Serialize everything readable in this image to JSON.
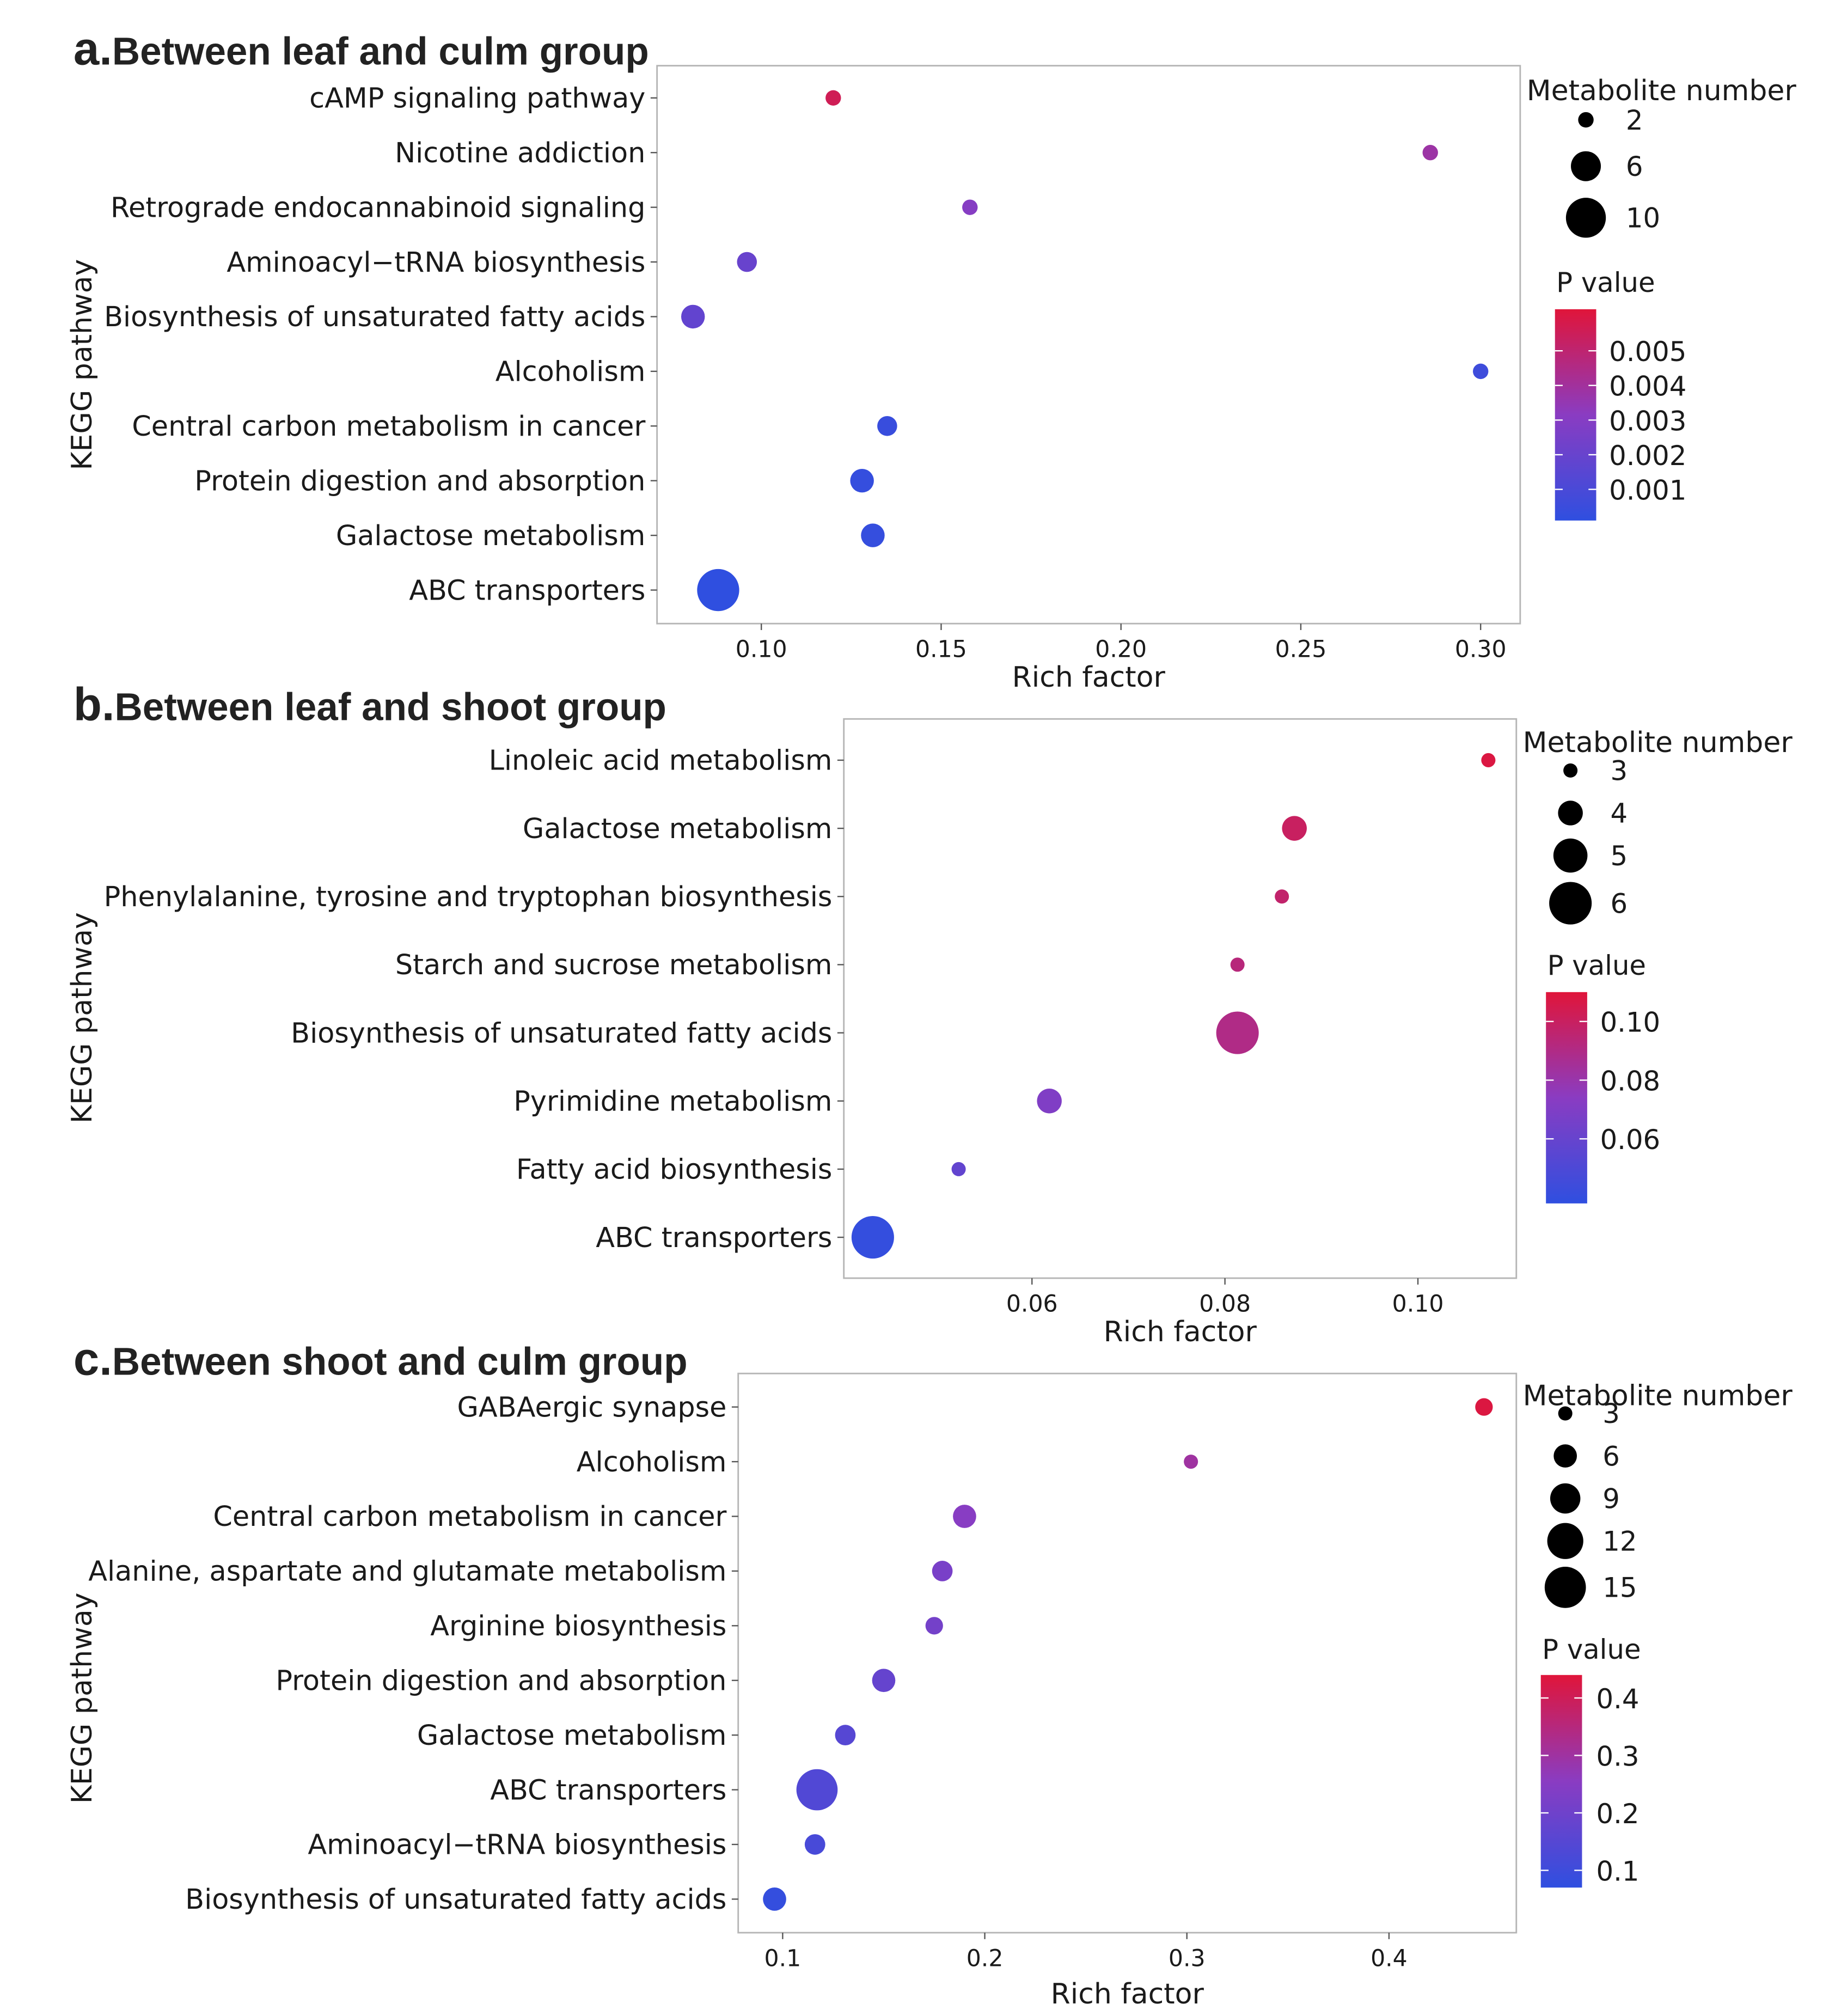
{
  "legend_titles": {
    "size": "Metabolite number",
    "color": "P value"
  },
  "ylabel": "KEGG pathway",
  "xlabel": "Rich factor",
  "color_scale": {
    "low": "#2f4fe0",
    "mid": "#8a3cc2",
    "high": "#e0153a"
  },
  "chart_data": [
    {
      "type": "scatter",
      "panel": "a.",
      "title": "Between leaf and culm group",
      "xlabel": "Rich factor",
      "ylabel": "KEGG pathway",
      "xlim": [
        0.071,
        0.311
      ],
      "xticks": [
        0.1,
        0.15,
        0.2,
        0.25,
        0.3
      ],
      "xtick_labels": [
        "0.10",
        "0.15",
        "0.20",
        "0.25",
        "0.30"
      ],
      "categories": [
        "cAMP signaling pathway",
        "Nicotine addiction",
        "Retrograde endocannabinoid signaling",
        "Aminoacyl−tRNA biosynthesis",
        "Biosynthesis of unsaturated fatty acids",
        "Alcoholism",
        "Central carbon metabolism in cancer",
        "Protein digestion and absorption",
        "Galactose metabolism",
        "ABC transporters"
      ],
      "rich_factor": [
        0.12,
        0.286,
        0.158,
        0.096,
        0.081,
        0.3,
        0.135,
        0.128,
        0.131,
        0.088
      ],
      "metabolite_number": [
        2,
        2,
        2,
        3,
        4,
        2,
        3,
        4,
        4,
        11
      ],
      "p_value": [
        0.0056,
        0.0038,
        0.003,
        0.002,
        0.0018,
        0.0006,
        0.0004,
        0.0003,
        0.0003,
        0.0001
      ],
      "size_legend": {
        "values": [
          2,
          6,
          10
        ],
        "labels": [
          "2",
          "6",
          "10"
        ]
      },
      "color_legend": {
        "min": 0.0001,
        "max": 0.0062,
        "ticks": [
          0.005,
          0.004,
          0.003,
          0.002,
          0.001
        ],
        "labels": [
          "0.005",
          "0.004",
          "0.003",
          "0.002",
          "0.001"
        ]
      }
    },
    {
      "type": "scatter",
      "panel": "b.",
      "title": "Between leaf and shoot group",
      "xlabel": "Rich factor",
      "ylabel": "KEGG pathway",
      "xlim": [
        0.0405,
        0.1102
      ],
      "xticks": [
        0.06,
        0.08,
        0.1
      ],
      "xtick_labels": [
        "0.06",
        "0.08",
        "0.10"
      ],
      "categories": [
        "Linoleic acid metabolism",
        "Galactose metabolism",
        "Phenylalanine, tyrosine and tryptophan biosynthesis",
        "Starch and sucrose metabolism",
        "Biosynthesis of unsaturated fatty acids",
        "Pyrimidine metabolism",
        "Fatty acid biosynthesis",
        "ABC transporters"
      ],
      "rich_factor": [
        0.1073,
        0.0872,
        0.0859,
        0.0813,
        0.0813,
        0.0618,
        0.0524,
        0.0435
      ],
      "metabolite_number": [
        3,
        4,
        3,
        3,
        6,
        4,
        3,
        6
      ],
      "p_value": [
        0.108,
        0.1,
        0.097,
        0.093,
        0.09,
        0.07,
        0.058,
        0.04
      ],
      "size_legend": {
        "values": [
          3,
          4,
          5,
          6
        ],
        "labels": [
          "3",
          "4",
          "5",
          "6"
        ]
      },
      "color_legend": {
        "min": 0.038,
        "max": 0.11,
        "ticks": [
          0.1,
          0.08,
          0.06
        ],
        "labels": [
          "0.10",
          "0.08",
          "0.06"
        ]
      }
    },
    {
      "type": "scatter",
      "panel": "c.",
      "title": "Between shoot and culm group",
      "xlabel": "Rich factor",
      "ylabel": "KEGG pathway",
      "xlim": [
        0.078,
        0.463
      ],
      "xticks": [
        0.1,
        0.2,
        0.3,
        0.4
      ],
      "xtick_labels": [
        "0.1",
        "0.2",
        "0.3",
        "0.4"
      ],
      "categories": [
        "GABAergic synapse",
        "Alcoholism",
        "Central carbon metabolism in cancer",
        "Alanine, aspartate and glutamate metabolism",
        "Arginine biosynthesis",
        "Protein digestion and absorption",
        "Galactose metabolism",
        "ABC transporters",
        "Aminoacyl−tRNA biosynthesis",
        "Biosynthesis of unsaturated fatty acids"
      ],
      "rich_factor": [
        0.447,
        0.302,
        0.19,
        0.179,
        0.175,
        0.15,
        0.131,
        0.117,
        0.116,
        0.096
      ],
      "metabolite_number": [
        4,
        3,
        6,
        5,
        4,
        6,
        5,
        15,
        5,
        6
      ],
      "p_value": [
        0.43,
        0.3,
        0.25,
        0.22,
        0.21,
        0.18,
        0.15,
        0.14,
        0.12,
        0.08
      ],
      "size_legend": {
        "values": [
          3,
          6,
          9,
          12,
          15
        ],
        "labels": [
          "3",
          "6",
          "9",
          "12",
          "15"
        ]
      },
      "color_legend": {
        "min": 0.07,
        "max": 0.44,
        "ticks": [
          0.4,
          0.3,
          0.2,
          0.1
        ],
        "labels": [
          "0.4",
          "0.3",
          "0.2",
          "0.1"
        ]
      }
    }
  ]
}
